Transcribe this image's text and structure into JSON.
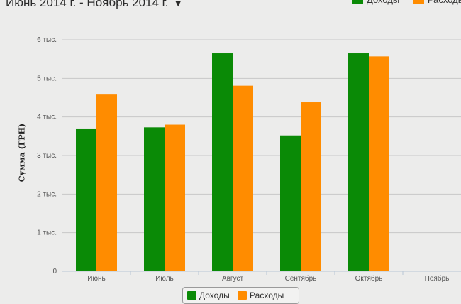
{
  "range_selector": {
    "label": "Июнь 2014 г. - Ноябрь 2014 г.",
    "arrow": "▼"
  },
  "legend": {
    "items": [
      {
        "label": "Доходы",
        "color": "#0a8a06"
      },
      {
        "label": "Расходы",
        "color": "#ff8c00"
      }
    ]
  },
  "chart_data": {
    "type": "bar",
    "ylabel": "Сумма (ГРН)",
    "xlabel": "",
    "categories": [
      "Июнь",
      "Июль",
      "Август",
      "Сентябрь",
      "Октябрь",
      "Ноябрь"
    ],
    "series": [
      {
        "name": "Доходы",
        "color": "#0a8a06",
        "values": [
          3700,
          3730,
          5650,
          3520,
          5650,
          null
        ]
      },
      {
        "name": "Расходы",
        "color": "#ff8c00",
        "values": [
          4580,
          3800,
          4810,
          4380,
          5570,
          null
        ]
      }
    ],
    "ylim": [
      0,
      6000
    ],
    "yticks": [
      {
        "value": 0,
        "label": "0"
      },
      {
        "value": 1000,
        "label": "1 тыс."
      },
      {
        "value": 2000,
        "label": "2 тыс."
      },
      {
        "value": 3000,
        "label": "3 тыс."
      },
      {
        "value": 4000,
        "label": "4 тыс."
      },
      {
        "value": 5000,
        "label": "5 тыс."
      },
      {
        "value": 6000,
        "label": "6 тыс."
      }
    ],
    "grid": true,
    "legend_position": "top-right and bottom-center"
  }
}
